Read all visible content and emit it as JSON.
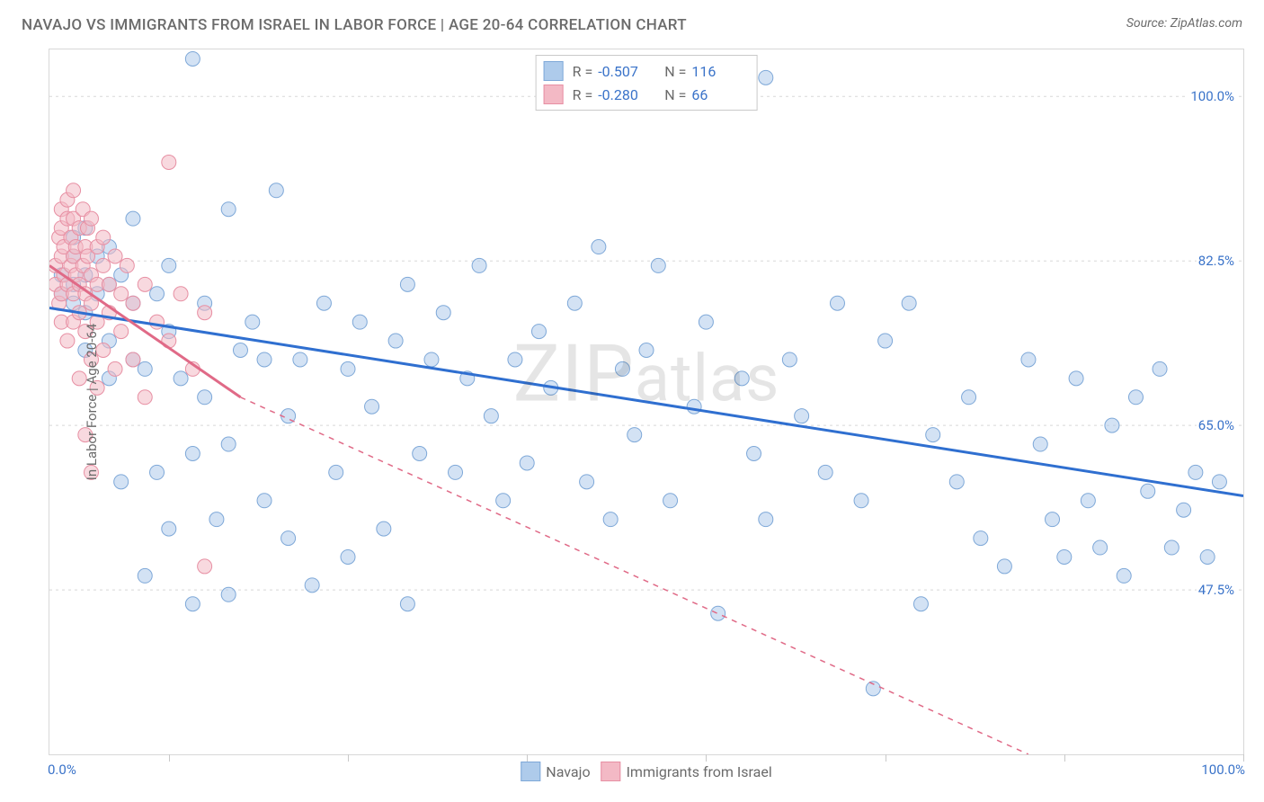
{
  "title": "NAVAJO VS IMMIGRANTS FROM ISRAEL IN LABOR FORCE | AGE 20-64 CORRELATION CHART",
  "source": "Source: ZipAtlas.com",
  "watermark": "ZIPatlas",
  "chart": {
    "type": "scatter",
    "y_axis_title": "In Labor Force | Age 20-64",
    "xlim": [
      0,
      100
    ],
    "ylim": [
      30,
      105
    ],
    "x_min_label": "0.0%",
    "x_max_label": "100.0%",
    "x_tick_positions": [
      10,
      25,
      40,
      55,
      70,
      85,
      100
    ],
    "y_grid": [
      {
        "value": 100.0,
        "label": "100.0%"
      },
      {
        "value": 82.5,
        "label": "82.5%"
      },
      {
        "value": 65.0,
        "label": "65.0%"
      },
      {
        "value": 47.5,
        "label": "47.5%"
      }
    ],
    "background_color": "#ffffff",
    "grid_color": "#d8d8d8",
    "marker_radius": 8,
    "marker_opacity": 0.55,
    "series": [
      {
        "key": "navajo",
        "label": "Navajo",
        "fill": "#aecbeb",
        "stroke": "#7ea8d8",
        "line_color": "#2f6fd0",
        "line_width": 3,
        "r": "-0.507",
        "n": "116",
        "trend": {
          "x1": 0,
          "y1": 77.5,
          "x2": 100,
          "y2": 57.5,
          "dash": null
        },
        "trend_ext": null,
        "points": [
          [
            1,
            81
          ],
          [
            1,
            79
          ],
          [
            2,
            83
          ],
          [
            2,
            80
          ],
          [
            2,
            78
          ],
          [
            2,
            85
          ],
          [
            3,
            81
          ],
          [
            3,
            77
          ],
          [
            3,
            86
          ],
          [
            3,
            73
          ],
          [
            4,
            79
          ],
          [
            4,
            83
          ],
          [
            5,
            80
          ],
          [
            5,
            84
          ],
          [
            5,
            74
          ],
          [
            5,
            70
          ],
          [
            6,
            81
          ],
          [
            6,
            59
          ],
          [
            7,
            78
          ],
          [
            7,
            87
          ],
          [
            7,
            72
          ],
          [
            8,
            49
          ],
          [
            8,
            71
          ],
          [
            9,
            79
          ],
          [
            9,
            60
          ],
          [
            10,
            82
          ],
          [
            10,
            75
          ],
          [
            10,
            54
          ],
          [
            11,
            70
          ],
          [
            12,
            62
          ],
          [
            12,
            46
          ],
          [
            12,
            104
          ],
          [
            13,
            78
          ],
          [
            13,
            68
          ],
          [
            14,
            55
          ],
          [
            15,
            88
          ],
          [
            15,
            63
          ],
          [
            15,
            47
          ],
          [
            16,
            73
          ],
          [
            17,
            76
          ],
          [
            18,
            72
          ],
          [
            18,
            57
          ],
          [
            19,
            90
          ],
          [
            20,
            66
          ],
          [
            20,
            53
          ],
          [
            21,
            72
          ],
          [
            22,
            48
          ],
          [
            23,
            78
          ],
          [
            24,
            60
          ],
          [
            25,
            71
          ],
          [
            25,
            51
          ],
          [
            26,
            76
          ],
          [
            27,
            67
          ],
          [
            28,
            54
          ],
          [
            29,
            74
          ],
          [
            30,
            80
          ],
          [
            30,
            46
          ],
          [
            31,
            62
          ],
          [
            32,
            72
          ],
          [
            33,
            77
          ],
          [
            34,
            60
          ],
          [
            35,
            70
          ],
          [
            36,
            82
          ],
          [
            37,
            66
          ],
          [
            38,
            57
          ],
          [
            39,
            72
          ],
          [
            40,
            61
          ],
          [
            41,
            75
          ],
          [
            42,
            69
          ],
          [
            44,
            78
          ],
          [
            45,
            59
          ],
          [
            46,
            84
          ],
          [
            47,
            55
          ],
          [
            48,
            71
          ],
          [
            49,
            64
          ],
          [
            50,
            73
          ],
          [
            51,
            82
          ],
          [
            52,
            57
          ],
          [
            54,
            67
          ],
          [
            55,
            76
          ],
          [
            56,
            45
          ],
          [
            58,
            70
          ],
          [
            59,
            62
          ],
          [
            60,
            102
          ],
          [
            60,
            55
          ],
          [
            62,
            72
          ],
          [
            63,
            66
          ],
          [
            65,
            60
          ],
          [
            66,
            78
          ],
          [
            68,
            57
          ],
          [
            69,
            37
          ],
          [
            70,
            74
          ],
          [
            72,
            78
          ],
          [
            73,
            46
          ],
          [
            74,
            64
          ],
          [
            76,
            59
          ],
          [
            77,
            68
          ],
          [
            78,
            53
          ],
          [
            80,
            50
          ],
          [
            82,
            72
          ],
          [
            83,
            63
          ],
          [
            84,
            55
          ],
          [
            85,
            51
          ],
          [
            86,
            70
          ],
          [
            87,
            57
          ],
          [
            88,
            52
          ],
          [
            89,
            65
          ],
          [
            90,
            49
          ],
          [
            91,
            68
          ],
          [
            92,
            58
          ],
          [
            93,
            71
          ],
          [
            94,
            52
          ],
          [
            95,
            56
          ],
          [
            96,
            60
          ],
          [
            97,
            51
          ],
          [
            98,
            59
          ]
        ]
      },
      {
        "key": "israel",
        "label": "Immigrants from Israel",
        "fill": "#f3b9c5",
        "stroke": "#e78fa3",
        "line_color": "#e06a87",
        "line_width": 3,
        "r": "-0.280",
        "n": "66",
        "trend": {
          "x1": 0,
          "y1": 82.0,
          "x2": 16,
          "y2": 68.0,
          "dash": null
        },
        "trend_ext": {
          "x1": 16,
          "y1": 68.0,
          "x2": 82,
          "y2": 30.0,
          "dash": "6,6"
        },
        "points": [
          [
            0.5,
            80
          ],
          [
            0.5,
            82
          ],
          [
            0.8,
            85
          ],
          [
            0.8,
            78
          ],
          [
            1,
            86
          ],
          [
            1,
            83
          ],
          [
            1,
            79
          ],
          [
            1,
            88
          ],
          [
            1,
            76
          ],
          [
            1.2,
            84
          ],
          [
            1.2,
            81
          ],
          [
            1.5,
            87
          ],
          [
            1.5,
            80
          ],
          [
            1.5,
            74
          ],
          [
            1.5,
            89
          ],
          [
            1.8,
            82
          ],
          [
            1.8,
            85
          ],
          [
            2,
            83
          ],
          [
            2,
            79
          ],
          [
            2,
            87
          ],
          [
            2,
            76
          ],
          [
            2,
            90
          ],
          [
            2.2,
            81
          ],
          [
            2.2,
            84
          ],
          [
            2.5,
            80
          ],
          [
            2.5,
            86
          ],
          [
            2.5,
            77
          ],
          [
            2.5,
            70
          ],
          [
            2.8,
            82
          ],
          [
            2.8,
            88
          ],
          [
            3,
            84
          ],
          [
            3,
            79
          ],
          [
            3,
            75
          ],
          [
            3,
            64
          ],
          [
            3.2,
            83
          ],
          [
            3.2,
            86
          ],
          [
            3.5,
            81
          ],
          [
            3.5,
            78
          ],
          [
            3.5,
            72
          ],
          [
            3.5,
            60
          ],
          [
            3.5,
            87
          ],
          [
            4,
            84
          ],
          [
            4,
            80
          ],
          [
            4,
            76
          ],
          [
            4,
            69
          ],
          [
            4.5,
            82
          ],
          [
            4.5,
            85
          ],
          [
            4.5,
            73
          ],
          [
            5,
            80
          ],
          [
            5,
            77
          ],
          [
            5.5,
            83
          ],
          [
            5.5,
            71
          ],
          [
            6,
            79
          ],
          [
            6,
            75
          ],
          [
            6.5,
            82
          ],
          [
            7,
            78
          ],
          [
            7,
            72
          ],
          [
            8,
            80
          ],
          [
            8,
            68
          ],
          [
            9,
            76
          ],
          [
            10,
            74
          ],
          [
            10,
            93
          ],
          [
            11,
            79
          ],
          [
            12,
            71
          ],
          [
            13,
            77
          ],
          [
            13,
            50
          ]
        ]
      }
    ]
  },
  "legend_top": {
    "r_label": "R =",
    "n_label": "N ="
  },
  "legend_bottom_labels": [
    "Navajo",
    "Immigrants from Israel"
  ]
}
